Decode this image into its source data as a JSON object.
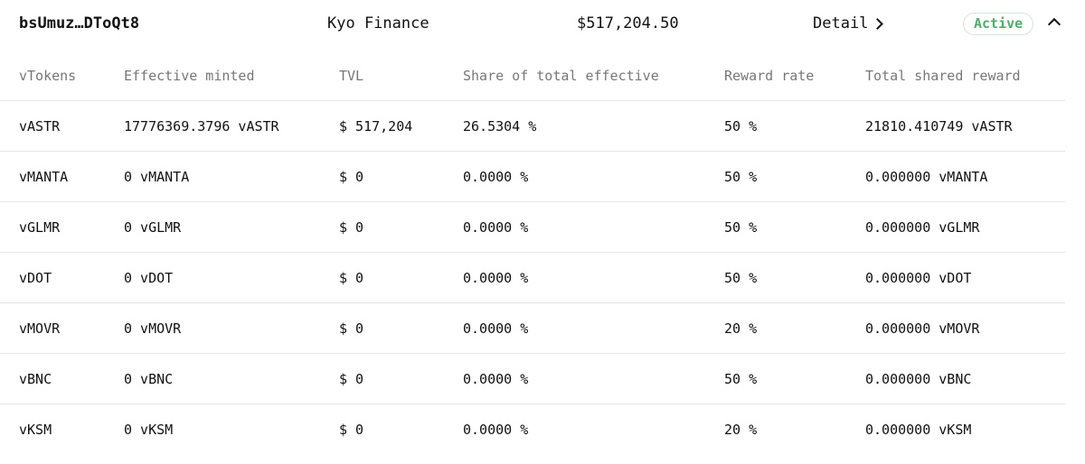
{
  "header": {
    "address": "bsUmuz…DToQt8",
    "project": "Kyo Finance",
    "total_tvl": "$517,204.50",
    "detail_label": "Detail",
    "status": "Active",
    "status_color": "#4caf6a"
  },
  "table": {
    "columns": [
      "vTokens",
      "Effective minted",
      "TVL",
      "Share of total effective",
      "Reward rate",
      "Total shared reward"
    ],
    "rows": [
      [
        "vASTR",
        "17776369.3796 vASTR",
        "$ 517,204",
        "26.5304 %",
        "50 %",
        "21810.410749 vASTR"
      ],
      [
        "vMANTA",
        "0 vMANTA",
        "$ 0",
        "0.0000 %",
        "50 %",
        "0.000000 vMANTA"
      ],
      [
        "vGLMR",
        "0 vGLMR",
        "$ 0",
        "0.0000 %",
        "50 %",
        "0.000000 vGLMR"
      ],
      [
        "vDOT",
        "0 vDOT",
        "$ 0",
        "0.0000 %",
        "50 %",
        "0.000000 vDOT"
      ],
      [
        "vMOVR",
        "0 vMOVR",
        "$ 0",
        "0.0000 %",
        "20 %",
        "0.000000 vMOVR"
      ],
      [
        "vBNC",
        "0 vBNC",
        "$ 0",
        "0.0000 %",
        "50 %",
        "0.000000 vBNC"
      ],
      [
        "vKSM",
        "0 vKSM",
        "$ 0",
        "0.0000 %",
        "20 %",
        "0.000000 vKSM"
      ]
    ]
  }
}
